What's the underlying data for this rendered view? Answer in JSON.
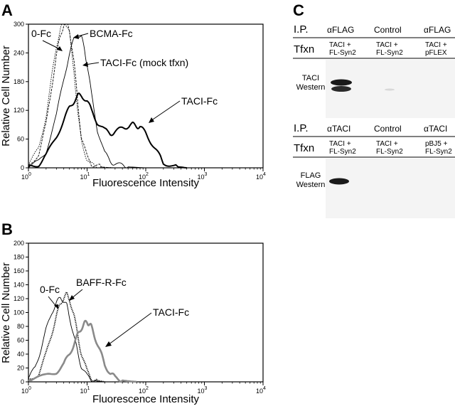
{
  "panels": {
    "a": "A",
    "b": "B",
    "c": "C"
  },
  "chart_data": [
    {
      "panel": "A",
      "type": "line",
      "xlabel": "Fluorescence Intensity",
      "ylabel": "Relative Cell Number",
      "x_scale": "log",
      "xlim": [
        1,
        10000
      ],
      "ylim": [
        0,
        300
      ],
      "x_ticks": [
        {
          "base": "10",
          "exp": "0"
        },
        {
          "base": "10",
          "exp": "1"
        },
        {
          "base": "10",
          "exp": "2"
        },
        {
          "base": "10",
          "exp": "3"
        },
        {
          "base": "10",
          "exp": "4"
        }
      ],
      "y_ticks": [
        "0",
        "60",
        "120",
        "180",
        "240",
        "300"
      ],
      "series": [
        {
          "name": "0-Fc",
          "style": "dotted-thin",
          "x": [
            1,
            1.5,
            2,
            2.5,
            3,
            3.5,
            4,
            4.5,
            5,
            6,
            7,
            8,
            10,
            12,
            15,
            20,
            30
          ],
          "y": [
            5,
            40,
            110,
            190,
            255,
            290,
            305,
            300,
            280,
            200,
            110,
            55,
            18,
            6,
            3,
            1,
            0
          ]
        },
        {
          "name": "BCMA-Fc",
          "style": "dashed-thin",
          "x": [
            1,
            1.5,
            2,
            2.5,
            3,
            3.5,
            4,
            4.5,
            5,
            6,
            7,
            8,
            10,
            12,
            15,
            20,
            30
          ],
          "y": [
            4,
            30,
            90,
            170,
            235,
            275,
            300,
            305,
            290,
            220,
            130,
            65,
            22,
            8,
            3,
            1,
            0
          ]
        },
        {
          "name": "TACI-Fc (mock tfxn)",
          "style": "thin",
          "x": [
            1,
            1.5,
            2,
            3,
            4,
            5,
            6,
            7,
            8,
            9,
            10,
            12,
            15,
            20,
            25,
            30,
            40,
            50,
            70,
            100
          ],
          "y": [
            3,
            12,
            35,
            110,
            185,
            240,
            268,
            278,
            272,
            250,
            215,
            150,
            80,
            30,
            14,
            8,
            4,
            2,
            1,
            0
          ]
        },
        {
          "name": "TACI-Fc",
          "style": "thick",
          "x": [
            1,
            1.5,
            2,
            3,
            4,
            5,
            6,
            7,
            8,
            10,
            12,
            15,
            20,
            25,
            30,
            40,
            50,
            60,
            70,
            80,
            100,
            130,
            170,
            200,
            300,
            500
          ],
          "y": [
            2,
            8,
            25,
            65,
            100,
            125,
            140,
            150,
            152,
            140,
            118,
            95,
            78,
            72,
            75,
            82,
            88,
            90,
            88,
            85,
            72,
            50,
            25,
            12,
            3,
            0
          ]
        }
      ],
      "annotations": [
        "0-Fc",
        "BCMA-Fc",
        "TACI-Fc (mock tfxn)",
        "TACI-Fc"
      ]
    },
    {
      "panel": "B",
      "type": "line",
      "xlabel": "Fluorescence Intensity",
      "ylabel": "Relative Cell Number",
      "x_scale": "log",
      "xlim": [
        1,
        10000
      ],
      "ylim": [
        0,
        200
      ],
      "x_ticks": [
        {
          "base": "10",
          "exp": "0"
        },
        {
          "base": "10",
          "exp": "1"
        },
        {
          "base": "10",
          "exp": "2"
        },
        {
          "base": "10",
          "exp": "3"
        },
        {
          "base": "10",
          "exp": "4"
        }
      ],
      "y_ticks": [
        "0",
        "20",
        "40",
        "60",
        "80",
        "100",
        "120",
        "140",
        "160",
        "180",
        "200"
      ],
      "series": [
        {
          "name": "0-Fc",
          "style": "thin",
          "x": [
            1,
            1.3,
            1.6,
            2,
            2.5,
            3,
            3.5,
            4,
            4.5,
            5,
            6,
            7,
            8,
            10,
            12,
            15,
            20
          ],
          "y": [
            5,
            20,
            45,
            75,
            100,
            115,
            120,
            118,
            110,
            95,
            65,
            40,
            22,
            8,
            3,
            1,
            0
          ]
        },
        {
          "name": "BAFF-R-Fc",
          "style": "dotted-thick",
          "x": [
            1,
            1.5,
            2,
            2.5,
            3,
            3.5,
            4,
            4.5,
            5,
            6,
            7,
            8,
            10,
            12,
            15,
            20
          ],
          "y": [
            3,
            12,
            40,
            70,
            95,
            112,
            122,
            126,
            120,
            95,
            65,
            40,
            15,
            5,
            2,
            0
          ]
        },
        {
          "name": "TACI-Fc",
          "style": "gray-thick",
          "x": [
            1,
            2,
            3,
            4,
            5,
            6,
            7,
            8,
            9,
            10,
            11,
            12,
            14,
            17,
            20,
            25,
            30,
            40,
            50,
            70
          ],
          "y": [
            2,
            8,
            15,
            25,
            40,
            55,
            68,
            78,
            84,
            86,
            84,
            78,
            62,
            42,
            25,
            12,
            6,
            2,
            1,
            0
          ]
        }
      ],
      "annotations": [
        "0-Fc",
        "BAFF-R-Fc",
        "TACI-Fc"
      ]
    }
  ],
  "blot_top": {
    "ip_label": "I.P.",
    "tfxn_label": "Tfxn",
    "columns": [
      {
        "ip": "αFLAG",
        "tfxn1": "TACI +",
        "tfxn2": "FL-Syn2"
      },
      {
        "ip": "Control",
        "tfxn1": "TACI +",
        "tfxn2": "FL-Syn2"
      },
      {
        "ip": "αFLAG",
        "tfxn1": "TACI +",
        "tfxn2": "pFLEX"
      }
    ],
    "western1": "TACI",
    "western2": "Western"
  },
  "blot_bottom": {
    "ip_label": "I.P.",
    "tfxn_label": "Tfxn",
    "columns": [
      {
        "ip": "αTACI",
        "tfxn1": "TACI +",
        "tfxn2": "FL-Syn2"
      },
      {
        "ip": "Control",
        "tfxn1": "TACI +",
        "tfxn2": "FL-Syn2"
      },
      {
        "ip": "αTACI",
        "tfxn1": "pBJ5 +",
        "tfxn2": "FL-Syn2"
      }
    ],
    "western1": "FLAG",
    "western2": "Western"
  },
  "colors": {
    "ink": "#000000",
    "gray_series": "#8a8a8a",
    "blot_bg": "#f4f4f4",
    "band": "#1a1a1a"
  }
}
